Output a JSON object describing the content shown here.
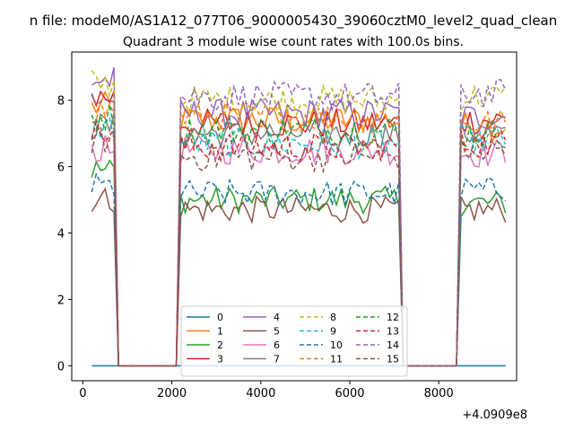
{
  "figure": {
    "suptitle": "n file: modeM0/AS1A12_077T06_9000005430_39060cztM0_level2_quad_clean",
    "title": "Quadrant 3 module wise count rates with 100.0s bins."
  },
  "chart_data": {
    "type": "line",
    "title": "Quadrant 3 module wise count rates with 100.0s bins.",
    "xlabel": "",
    "ylabel": "",
    "x_offset_label": "+4.0909e8",
    "xlim": [
      -250,
      9750
    ],
    "ylim": [
      -0.45,
      9.45
    ],
    "xticks": [
      0,
      2000,
      4000,
      6000,
      8000
    ],
    "yticks": [
      0,
      2,
      4,
      6,
      8
    ],
    "legend_position": "lower-center",
    "legend_columns": 4,
    "gap_intervals": [
      [
        700,
        2200
      ],
      [
        7100,
        8500
      ]
    ],
    "series": [
      {
        "name": "0",
        "color": "#1f77b4",
        "dash": "solid",
        "on_level": 0.0,
        "start_level": 0.0,
        "end_level": 0.0
      },
      {
        "name": "1",
        "color": "#ff7f0e",
        "dash": "solid",
        "on_level": 7.4,
        "start_level": 7.8,
        "end_level": 7.2
      },
      {
        "name": "2",
        "color": "#2ca02c",
        "dash": "solid",
        "on_level": 5.0,
        "start_level": 5.9,
        "end_level": 4.9
      },
      {
        "name": "3",
        "color": "#d62728",
        "dash": "solid",
        "on_level": 7.3,
        "start_level": 8.1,
        "end_level": 7.4
      },
      {
        "name": "4",
        "color": "#9467bd",
        "dash": "solid",
        "on_level": 7.6,
        "start_level": 8.6,
        "end_level": 7.5
      },
      {
        "name": "5",
        "color": "#8c564b",
        "dash": "solid",
        "on_level": 4.7,
        "start_level": 5.0,
        "end_level": 4.7
      },
      {
        "name": "6",
        "color": "#e377c2",
        "dash": "solid",
        "on_level": 6.5,
        "start_level": 6.5,
        "end_level": 6.4
      },
      {
        "name": "7",
        "color": "#7f7f7f",
        "dash": "solid",
        "on_level": 7.0,
        "start_level": 7.2,
        "end_level": 7.0
      },
      {
        "name": "8",
        "color": "#bcbd22",
        "dash": "dashed",
        "on_level": 8.0,
        "start_level": 8.5,
        "end_level": 8.1
      },
      {
        "name": "9",
        "color": "#17becf",
        "dash": "dashed",
        "on_level": 6.7,
        "start_level": 7.2,
        "end_level": 6.8
      },
      {
        "name": "10",
        "color": "#1f77b4",
        "dash": "dashed",
        "on_level": 5.2,
        "start_level": 5.4,
        "end_level": 5.3
      },
      {
        "name": "11",
        "color": "#ff7f0e",
        "dash": "dashed",
        "on_level": 7.5,
        "start_level": 7.7,
        "end_level": 7.3
      },
      {
        "name": "12",
        "color": "#2ca02c",
        "dash": "dashed",
        "on_level": 7.1,
        "start_level": 7.5,
        "end_level": 7.0
      },
      {
        "name": "13",
        "color": "#d62728",
        "dash": "dashed",
        "on_level": 6.6,
        "start_level": 7.0,
        "end_level": 6.7
      },
      {
        "name": "14",
        "color": "#9467bd",
        "dash": "dashed",
        "on_level": 8.1,
        "start_level": 8.3,
        "end_level": 8.2
      },
      {
        "name": "15",
        "color": "#8c564b",
        "dash": "dashed",
        "on_level": 6.3,
        "start_level": 6.8,
        "end_level": 6.5
      }
    ],
    "segments": [
      {
        "x_start": 200,
        "x_end": 700,
        "level_key": "start_level"
      },
      {
        "x_start": 2200,
        "x_end": 7100,
        "level_key": "on_level"
      },
      {
        "x_start": 8500,
        "x_end": 9500,
        "level_key": "end_level"
      }
    ],
    "bin_size": 100
  }
}
